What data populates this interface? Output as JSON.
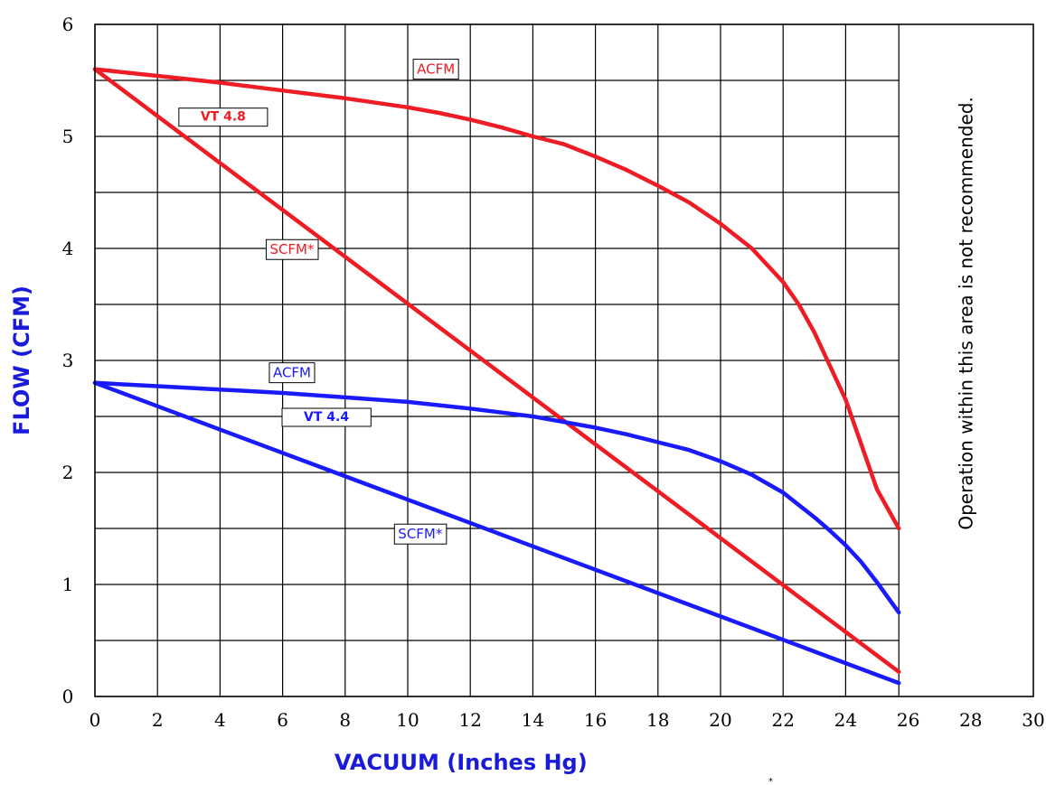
{
  "chart_data": {
    "type": "line",
    "xlabel": "VACUUM (Inches Hg)",
    "ylabel": "FLOW  (CFM)",
    "xlim": [
      0,
      30
    ],
    "ylim": [
      0,
      6
    ],
    "x_ticks": [
      0,
      2,
      4,
      6,
      8,
      10,
      12,
      14,
      16,
      18,
      20,
      22,
      24,
      26,
      28,
      30
    ],
    "y_ticks": [
      0,
      1,
      2,
      3,
      4,
      5,
      6
    ],
    "y_minor_step": 0.5,
    "grid": true,
    "not_recommended_from_x": 25.7,
    "annotation": "Operation within this area is not recommended.",
    "footnote_mark": "*",
    "colors": {
      "red": "#ee1c24",
      "blue": "#1a1aff",
      "axis": "#1a1adb"
    },
    "series": [
      {
        "name": "ACFM",
        "group": "VT 4.8",
        "color": "#ee1c24",
        "x": [
          0,
          2,
          4,
          6,
          8,
          10,
          11,
          12,
          13,
          14,
          15,
          16,
          17,
          18,
          19,
          20,
          21,
          22,
          22.5,
          23,
          23.5,
          24,
          24.5,
          25,
          25.7
        ],
        "y": [
          5.6,
          5.54,
          5.48,
          5.41,
          5.34,
          5.26,
          5.21,
          5.15,
          5.08,
          5.0,
          4.93,
          4.82,
          4.7,
          4.56,
          4.41,
          4.22,
          4.0,
          3.7,
          3.5,
          3.25,
          2.95,
          2.65,
          2.25,
          1.85,
          1.5
        ]
      },
      {
        "name": "SCFM*",
        "group": "VT 4.8",
        "color": "#ee1c24",
        "x": [
          0,
          25.7
        ],
        "y": [
          5.6,
          0.22
        ]
      },
      {
        "name": "ACFM",
        "group": "VT 4.4",
        "color": "#1a1aff",
        "x": [
          0,
          2,
          4,
          6,
          8,
          10,
          12,
          14,
          15,
          16,
          17,
          18,
          19,
          20,
          21,
          22,
          23,
          23.5,
          24,
          24.5,
          25,
          25.7
        ],
        "y": [
          2.8,
          2.77,
          2.74,
          2.71,
          2.67,
          2.63,
          2.57,
          2.5,
          2.45,
          2.4,
          2.34,
          2.27,
          2.2,
          2.1,
          1.98,
          1.82,
          1.6,
          1.48,
          1.35,
          1.2,
          1.02,
          0.75
        ]
      },
      {
        "name": "SCFM*",
        "group": "VT 4.4",
        "color": "#1a1aff",
        "x": [
          0,
          25.7
        ],
        "y": [
          2.8,
          0.12
        ]
      }
    ],
    "labels": [
      {
        "text": "ACFM",
        "color": "#ee1c24",
        "x": 10.9,
        "y": 5.6,
        "bold": false
      },
      {
        "text": "VT 4.8",
        "color": "#ee1c24",
        "x": 4.1,
        "y": 5.18,
        "bold": true
      },
      {
        "text": "SCFM*",
        "color": "#ee1c24",
        "x": 6.3,
        "y": 3.99,
        "bold": false
      },
      {
        "text": "ACFM",
        "color": "#1a1aff",
        "x": 6.3,
        "y": 2.89,
        "bold": false
      },
      {
        "text": "VT 4.4",
        "color": "#1a1aff",
        "x": 7.4,
        "y": 2.5,
        "bold": true
      },
      {
        "text": "SCFM*",
        "color": "#1a1aff",
        "x": 10.4,
        "y": 1.45,
        "bold": false
      }
    ]
  }
}
